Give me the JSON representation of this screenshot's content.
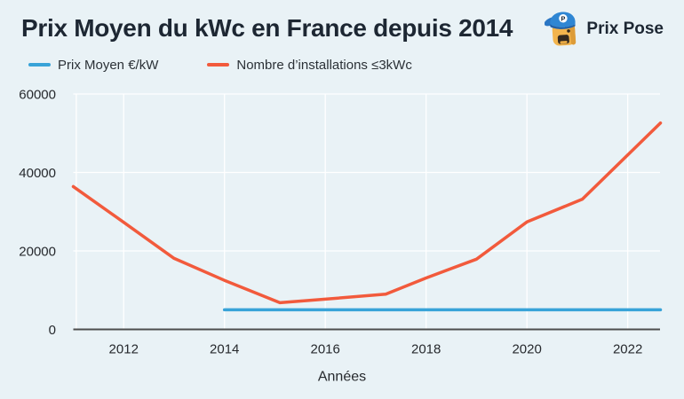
{
  "header": {
    "title": "Prix Moyen du kWc en France depuis 2014",
    "brand": "Prix Pose",
    "logo_badge": "P"
  },
  "colors": {
    "background": "#e9f2f6",
    "title_text": "#1d2733",
    "tick_text": "#26292d",
    "axis_line": "#4d4d4d",
    "gridline": "#ffffff",
    "series_blue": "#38a3d8",
    "series_orange": "#f25a3c"
  },
  "chart_data": {
    "type": "line",
    "title": "Prix Moyen du kWc en France depuis 2014",
    "xlabel": "Années",
    "ylabel": "",
    "xlim": [
      2011,
      2022.65
    ],
    "ylim": [
      0,
      60000
    ],
    "x_ticks": [
      2012,
      2014,
      2016,
      2018,
      2020,
      2022
    ],
    "y_ticks": [
      0,
      20000,
      40000,
      60000
    ],
    "grid": true,
    "legend_position": "top-left",
    "series": [
      {
        "name": "Prix Moyen €/kW",
        "color": "#38a3d8",
        "points": [
          [
            2014,
            5000
          ],
          [
            2022.65,
            5000
          ]
        ]
      },
      {
        "name": "Nombre d’installations ≤3kWc",
        "color": "#f25a3c",
        "points": [
          [
            2011,
            36400
          ],
          [
            2012,
            27300
          ],
          [
            2013,
            18100
          ],
          [
            2014,
            12500
          ],
          [
            2015.1,
            6800
          ],
          [
            2016,
            7700
          ],
          [
            2017.2,
            9000
          ],
          [
            2018,
            13100
          ],
          [
            2019,
            17900
          ],
          [
            2020,
            27400
          ],
          [
            2021.1,
            33200
          ],
          [
            2022.65,
            52600
          ]
        ]
      }
    ]
  }
}
